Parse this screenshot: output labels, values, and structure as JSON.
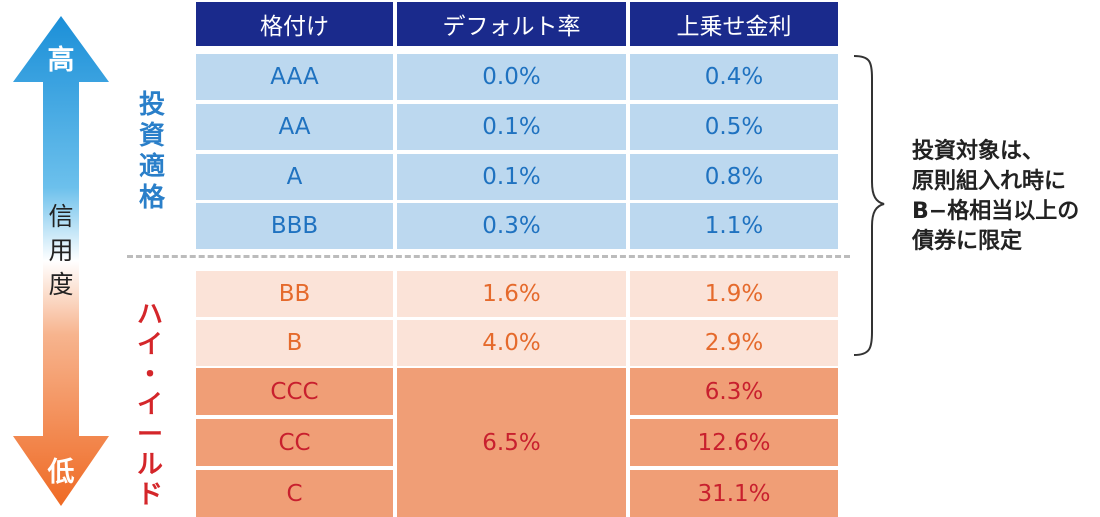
{
  "scale": {
    "top_label": "高",
    "middle_label": [
      "信",
      "用",
      "度"
    ],
    "bottom_label": "低",
    "colors": {
      "top": "#1b8fd8",
      "bottom": "#ef6a24"
    }
  },
  "group_labels": {
    "investment_grade": [
      "投",
      "資",
      "適",
      "格"
    ],
    "high_yield": [
      "ハ",
      "イ",
      "・",
      "イ",
      "ー",
      "ル",
      "ド"
    ]
  },
  "table": {
    "headers": [
      "格付け",
      "デフォルト率",
      "上乗せ金利"
    ],
    "investment_grade_rows": [
      {
        "rating": "AAA",
        "default_rate": "0.0%",
        "spread": "0.4%"
      },
      {
        "rating": "AA",
        "default_rate": "0.1%",
        "spread": "0.5%"
      },
      {
        "rating": "A",
        "default_rate": "0.1%",
        "spread": "0.8%"
      },
      {
        "rating": "BBB",
        "default_rate": "0.3%",
        "spread": "1.1%"
      }
    ],
    "high_yield_rows": [
      {
        "rating": "BB",
        "default_rate": "1.6%",
        "spread": "1.9%"
      },
      {
        "rating": "B",
        "default_rate": "4.0%",
        "spread": "2.9%"
      }
    ],
    "distressed_rows": [
      {
        "rating": "CCC",
        "spread": "6.3%"
      },
      {
        "rating": "CC",
        "spread": "12.6%"
      },
      {
        "rating": "C",
        "spread": "31.1%"
      }
    ],
    "distressed_default_rate": "6.5%",
    "colors": {
      "header": "#1a2a8c",
      "investment_grade": "#bcd8ef",
      "high_yield_light": "#fbe3d8",
      "high_yield_dark": "#f09e76"
    }
  },
  "note": {
    "lines": [
      "投資対象は、",
      "原則組入れ時に",
      "B−格相当以上の",
      "債券に限定"
    ]
  }
}
